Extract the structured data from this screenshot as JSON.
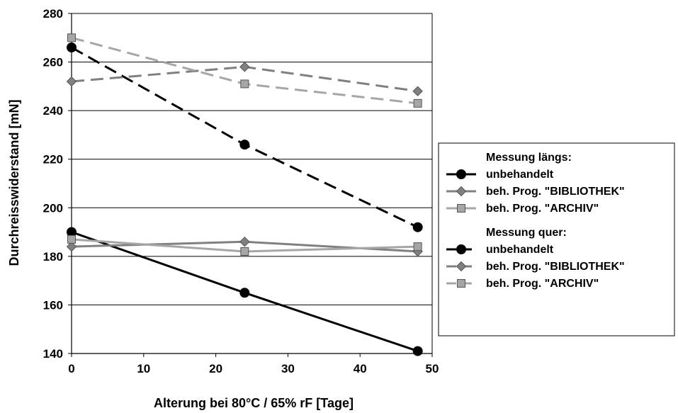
{
  "chart_data": {
    "type": "line",
    "title": "",
    "xlabel": "Alterung bei 80°C / 65% rF  [Tage]",
    "ylabel": "Durchreisswiderstand  [mN]",
    "xlim": [
      0,
      50
    ],
    "ylim": [
      140,
      280
    ],
    "x_ticks": [
      0,
      10,
      20,
      30,
      40,
      50
    ],
    "y_ticks": [
      140,
      160,
      180,
      200,
      220,
      240,
      260,
      280
    ],
    "grid": "horizontal",
    "legend_position": "right",
    "legend_groups": [
      {
        "heading": "Messung längs:",
        "items": [
          "unbehandelt",
          "beh. Prog. \"BIBLIOTHEK\"",
          "beh. Prog. \"ARCHIV\""
        ]
      },
      {
        "heading": "Messung quer:",
        "items": [
          "unbehandelt",
          "beh. Prog. \"BIBLIOTHEK\"",
          "beh. Prog. \"ARCHIV\""
        ]
      }
    ],
    "series": [
      {
        "group": "Messung längs:",
        "name": "unbehandelt",
        "x": [
          0,
          24,
          48
        ],
        "values": [
          190,
          165,
          141
        ],
        "color": "#000000",
        "marker": "circle",
        "dash": "solid"
      },
      {
        "group": "Messung längs:",
        "name": "beh. Prog. \"BIBLIOTHEK\"",
        "x": [
          0,
          24,
          48
        ],
        "values": [
          184,
          186,
          182
        ],
        "color": "#808080",
        "marker": "diamond",
        "dash": "solid"
      },
      {
        "group": "Messung längs:",
        "name": "beh. Prog. \"ARCHIV\"",
        "x": [
          0,
          24,
          48
        ],
        "values": [
          187,
          182,
          184
        ],
        "color": "#a6a6a6",
        "marker": "square",
        "dash": "solid"
      },
      {
        "group": "Messung quer:",
        "name": "unbehandelt",
        "x": [
          0,
          24,
          48
        ],
        "values": [
          266,
          226,
          192
        ],
        "color": "#000000",
        "marker": "circle",
        "dash": "dashed"
      },
      {
        "group": "Messung quer:",
        "name": "beh. Prog. \"BIBLIOTHEK\"",
        "x": [
          0,
          24,
          48
        ],
        "values": [
          252,
          258,
          248
        ],
        "color": "#808080",
        "marker": "diamond",
        "dash": "dashed"
      },
      {
        "group": "Messung quer:",
        "name": "beh. Prog. \"ARCHIV\"",
        "x": [
          0,
          24,
          48
        ],
        "values": [
          270,
          251,
          243
        ],
        "color": "#a6a6a6",
        "marker": "square",
        "dash": "dashed"
      }
    ]
  }
}
